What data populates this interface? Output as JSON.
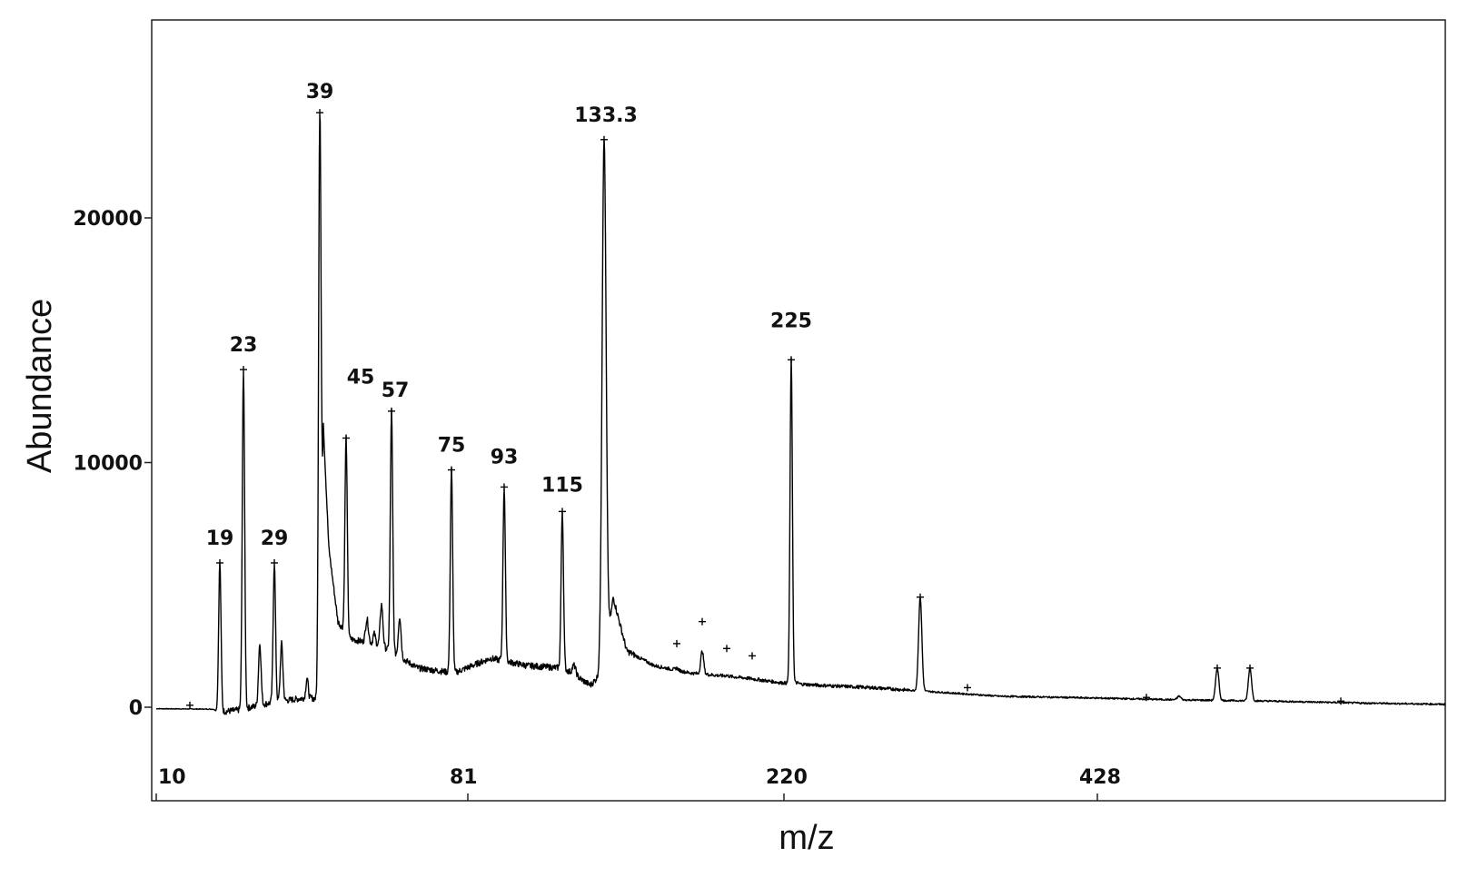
{
  "chart_data": {
    "type": "line",
    "title": "",
    "xlabel": "m/z",
    "ylabel": "Abundance",
    "y_ticks": [
      0,
      10000,
      20000
    ],
    "y_tick_labels": [
      "0",
      "10000",
      "20000"
    ],
    "x_ticks": [
      10,
      81,
      220,
      428
    ],
    "x_tick_labels": [
      "10",
      "81",
      "220",
      "428"
    ],
    "ylim": [
      -3500,
      27500
    ],
    "grid": false,
    "legend": "none",
    "line_color": "#000000",
    "peaks": [
      {
        "label": "19",
        "x": 19,
        "y": 5900
      },
      {
        "label": "23",
        "x": 23,
        "y": 13800
      },
      {
        "label": "29",
        "x": 29,
        "y": 5900
      },
      {
        "label": "39",
        "x": 39,
        "y": 24300
      },
      {
        "label": "45",
        "x": 45,
        "y": 11000
      },
      {
        "label": "57",
        "x": 57,
        "y": 12100
      },
      {
        "label": "75",
        "x": 75,
        "y": 9700
      },
      {
        "label": "93",
        "x": 93,
        "y": 9000
      },
      {
        "label": "115",
        "x": 115,
        "y": 8000
      },
      {
        "label": "133.3",
        "x": 133.3,
        "y": 23200
      },
      {
        "label": "225",
        "x": 225,
        "y": 14200
      }
    ],
    "minor_peaks": [
      {
        "x": 250,
        "y": 4500
      },
      {
        "x": 520,
        "y": 1600
      },
      {
        "x": 555,
        "y": 1600
      }
    ]
  }
}
